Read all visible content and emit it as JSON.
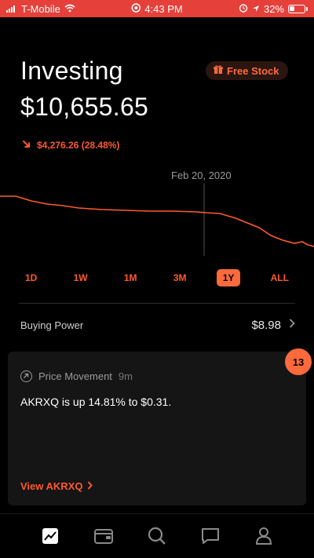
{
  "status_bar": {
    "carrier": "T-Mobile",
    "time": "4:43 PM",
    "battery": "32%",
    "icons": [
      "wifi-icon",
      "clock-icon",
      "alarm-icon",
      "battery-icon"
    ]
  },
  "header": {
    "title": "Investing",
    "free_stock_label": "Free Stock",
    "balance": "$10,655.65",
    "change": "$4,276.26 (28.48%)",
    "change_direction": "down"
  },
  "chart": {
    "hover_date": "Feb 20, 2020",
    "line_color": "#ff5a2e",
    "ranges": [
      "1D",
      "1W",
      "1M",
      "3M",
      "1Y",
      "ALL"
    ],
    "active_range": "1Y"
  },
  "buying_power": {
    "label": "Buying Power",
    "value": "$8.98"
  },
  "notification": {
    "badge_count": "13",
    "category": "Price Movement",
    "time_ago": "9m",
    "message": "AKRXQ is up 14.81% to $0.31.",
    "link_label": "View AKRXQ"
  },
  "tabbar": {
    "items": [
      "portfolio-icon",
      "wallet-icon",
      "search-icon",
      "messages-icon",
      "account-icon"
    ],
    "active": "portfolio-icon"
  },
  "colors": {
    "accent": "#ff6a3d",
    "negative": "#ff5a2e",
    "status_bar": "#e5403a",
    "background": "#000000"
  }
}
